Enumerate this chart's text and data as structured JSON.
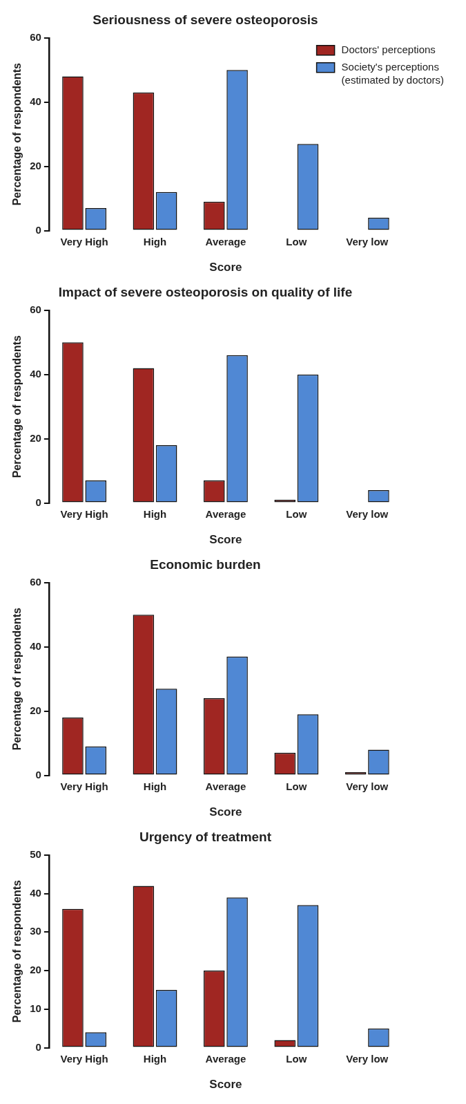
{
  "chart_data": [
    {
      "type": "bar",
      "title": "Seriousness of severe osteoporosis",
      "xlabel": "Score",
      "ylabel": "Percentage of respondents",
      "categories": [
        "Very High",
        "High",
        "Average",
        "Low",
        "Very low"
      ],
      "ylim": [
        0,
        60
      ],
      "yticks": [
        0,
        20,
        40,
        60
      ],
      "grid": false,
      "legend": "top right",
      "series": [
        {
          "name": "Doctors' perceptions",
          "color": "#a02622",
          "values": [
            48,
            43,
            9,
            0,
            0
          ]
        },
        {
          "name": "Society's perceptions (estimated by doctors)",
          "color": "#5088d4",
          "values": [
            7,
            12,
            50,
            27,
            4
          ]
        }
      ]
    },
    {
      "type": "bar",
      "title": "Impact of severe osteoporosis on quality of life",
      "xlabel": "Score",
      "ylabel": "Percentage of respondents",
      "categories": [
        "Very High",
        "High",
        "Average",
        "Low",
        "Very low"
      ],
      "ylim": [
        0,
        60
      ],
      "yticks": [
        0,
        20,
        40,
        60
      ],
      "grid": false,
      "legend": false,
      "series": [
        {
          "color": "#a02622",
          "values": [
            50,
            42,
            7,
            1,
            0
          ]
        },
        {
          "color": "#5088d4",
          "values": [
            7,
            18,
            46,
            40,
            4
          ]
        }
      ]
    },
    {
      "type": "bar",
      "title": "Economic burden",
      "xlabel": "Score",
      "ylabel": "Percentage of respondents",
      "categories": [
        "Very High",
        "High",
        "Average",
        "Low",
        "Very low"
      ],
      "ylim": [
        0,
        60
      ],
      "yticks": [
        0,
        20,
        40,
        60
      ],
      "grid": false,
      "legend": false,
      "series": [
        {
          "color": "#a02622",
          "values": [
            18,
            50,
            24,
            7,
            1
          ]
        },
        {
          "color": "#5088d4",
          "values": [
            9,
            27,
            37,
            19,
            8
          ]
        }
      ]
    },
    {
      "type": "bar",
      "title": "Urgency of treatment",
      "xlabel": "Score",
      "ylabel": "Percentage of respondents",
      "categories": [
        "Very High",
        "High",
        "Average",
        "Low",
        "Very low"
      ],
      "ylim": [
        0,
        50
      ],
      "yticks": [
        0,
        10,
        20,
        30,
        40,
        50
      ],
      "grid": false,
      "legend": false,
      "series": [
        {
          "color": "#a02622",
          "values": [
            36,
            42,
            20,
            2,
            0
          ]
        },
        {
          "color": "#5088d4",
          "values": [
            4,
            15,
            39,
            37,
            5
          ]
        }
      ]
    }
  ]
}
